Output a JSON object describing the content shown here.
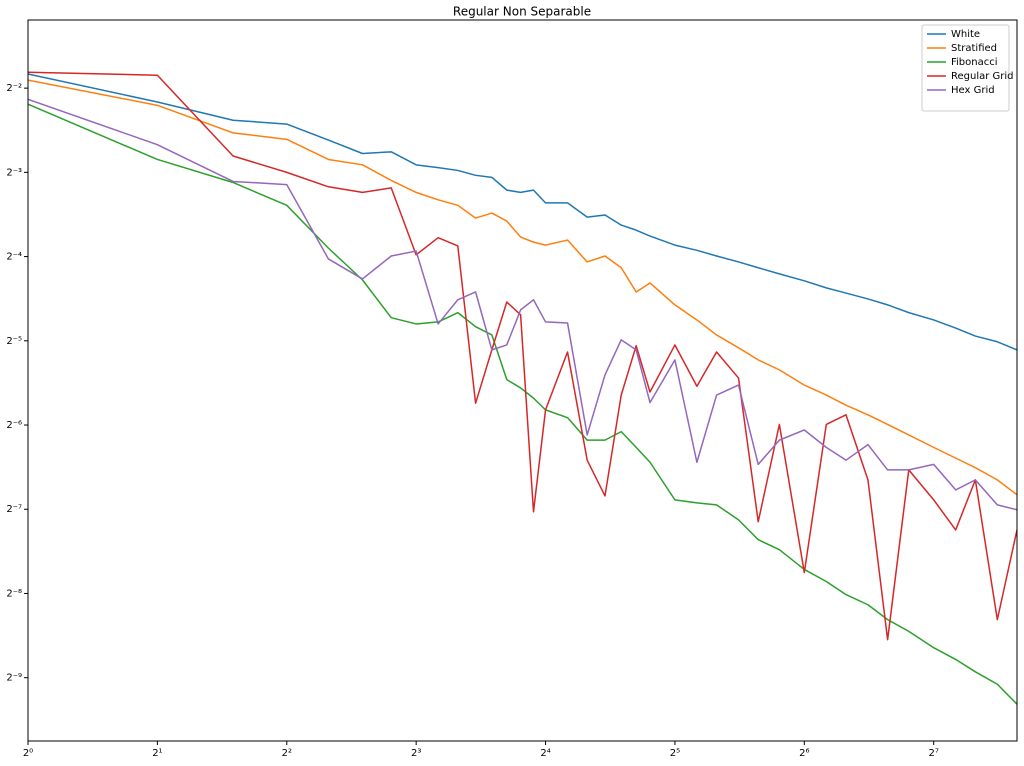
{
  "chart_data": {
    "type": "line",
    "title": "Regular Non Separable",
    "x": [
      1,
      2,
      3,
      4,
      5,
      6,
      7,
      8,
      9,
      10,
      11,
      12,
      13,
      14,
      15,
      16,
      18,
      20,
      22,
      24,
      26,
      28,
      32,
      36,
      40,
      45,
      50,
      56,
      64,
      72,
      80,
      90,
      100,
      112,
      128,
      144,
      160,
      180,
      200
    ],
    "series": [
      {
        "name": "White",
        "color": "#1f77b4",
        "values": [
          0.281,
          0.223,
          0.192,
          0.186,
          0.163,
          0.146,
          0.148,
          0.133,
          0.13,
          0.127,
          0.122,
          0.12,
          0.108,
          0.106,
          0.108,
          0.0972,
          0.0972,
          0.0865,
          0.088,
          0.081,
          0.0777,
          0.074,
          0.0687,
          0.0658,
          0.0628,
          0.0598,
          0.057,
          0.0542,
          0.0512,
          0.0483,
          0.0463,
          0.0441,
          0.042,
          0.0394,
          0.0371,
          0.0347,
          0.0325,
          0.031,
          0.029
        ]
      },
      {
        "name": "Stratified",
        "color": "#ff7f0e",
        "values": [
          0.267,
          0.217,
          0.173,
          0.164,
          0.139,
          0.133,
          0.117,
          0.106,
          0.0997,
          0.0953,
          0.0858,
          0.0894,
          0.0837,
          0.0734,
          0.0704,
          0.0687,
          0.0716,
          0.0598,
          0.0628,
          0.057,
          0.0467,
          0.0503,
          0.042,
          0.0371,
          0.0328,
          0.0295,
          0.0267,
          0.0246,
          0.0217,
          0.02,
          0.0184,
          0.017,
          0.0157,
          0.0144,
          0.013,
          0.0119,
          0.011,
          0.00995,
          0.0088
        ]
      },
      {
        "name": "Fibonacci",
        "color": "#2ca02c",
        "values": [
          0.219,
          0.139,
          0.115,
          0.0953,
          0.067,
          0.0516,
          0.0378,
          0.0359,
          0.0365,
          0.0394,
          0.0351,
          0.0328,
          0.0227,
          0.0212,
          0.0195,
          0.0177,
          0.0166,
          0.0138,
          0.0138,
          0.0148,
          0.013,
          0.0115,
          0.00844,
          0.00823,
          0.0081,
          0.00716,
          0.00608,
          0.0056,
          0.00476,
          0.00431,
          0.00387,
          0.00356,
          0.00315,
          0.00286,
          0.0025,
          0.00227,
          0.00205,
          0.00185,
          0.00157
        ]
      },
      {
        "name": "Regular Grid",
        "color": "#d62728",
        "values": [
          0.285,
          0.278,
          0.143,
          0.125,
          0.111,
          0.106,
          0.11,
          0.0634,
          0.073,
          0.0682,
          0.0187,
          0.029,
          0.043,
          0.0387,
          0.00765,
          0.0177,
          0.0285,
          0.0117,
          0.00872,
          0.02,
          0.03,
          0.0205,
          0.0302,
          0.0215,
          0.0285,
          0.023,
          0.00705,
          0.0157,
          0.00464,
          0.0157,
          0.017,
          0.00995,
          0.00267,
          0.0108,
          0.00844,
          0.00659,
          0.00995,
          0.00315,
          0.00659
        ]
      },
      {
        "name": "Hex Grid",
        "color": "#9467bd",
        "values": [
          0.228,
          0.157,
          0.116,
          0.113,
          0.0613,
          0.052,
          0.0628,
          0.0654,
          0.0359,
          0.0438,
          0.0467,
          0.029,
          0.0302,
          0.0403,
          0.0438,
          0.0365,
          0.0362,
          0.0144,
          0.0236,
          0.0315,
          0.029,
          0.0188,
          0.0267,
          0.0115,
          0.02,
          0.0217,
          0.0113,
          0.0138,
          0.015,
          0.013,
          0.0117,
          0.0133,
          0.0108,
          0.0108,
          0.0113,
          0.00916,
          0.00995,
          0.0081,
          0.00778
        ]
      }
    ],
    "xlim": [
      1,
      200
    ],
    "ylim": [
      0.00116,
      0.438
    ],
    "xscale": "log",
    "yscale": "log",
    "xticks": [
      {
        "value": 1,
        "label": "2⁰"
      },
      {
        "value": 2,
        "label": "2¹"
      },
      {
        "value": 4,
        "label": "2²"
      },
      {
        "value": 8,
        "label": "2³"
      },
      {
        "value": 16,
        "label": "2⁴"
      },
      {
        "value": 32,
        "label": "2⁵"
      },
      {
        "value": 64,
        "label": "2⁶"
      },
      {
        "value": 128,
        "label": "2⁷"
      }
    ],
    "yticks": [
      {
        "value": 0.25,
        "label": "2⁻²"
      },
      {
        "value": 0.125,
        "label": "2⁻³"
      },
      {
        "value": 0.0625,
        "label": "2⁻⁴"
      },
      {
        "value": 0.03125,
        "label": "2⁻⁵"
      },
      {
        "value": 0.015625,
        "label": "2⁻⁶"
      },
      {
        "value": 0.0078125,
        "label": "2⁻⁷"
      },
      {
        "value": 0.00390625,
        "label": "2⁻⁸"
      },
      {
        "value": 0.001953125,
        "label": "2⁻⁹"
      }
    ],
    "grid": false,
    "legend": "upper right"
  }
}
